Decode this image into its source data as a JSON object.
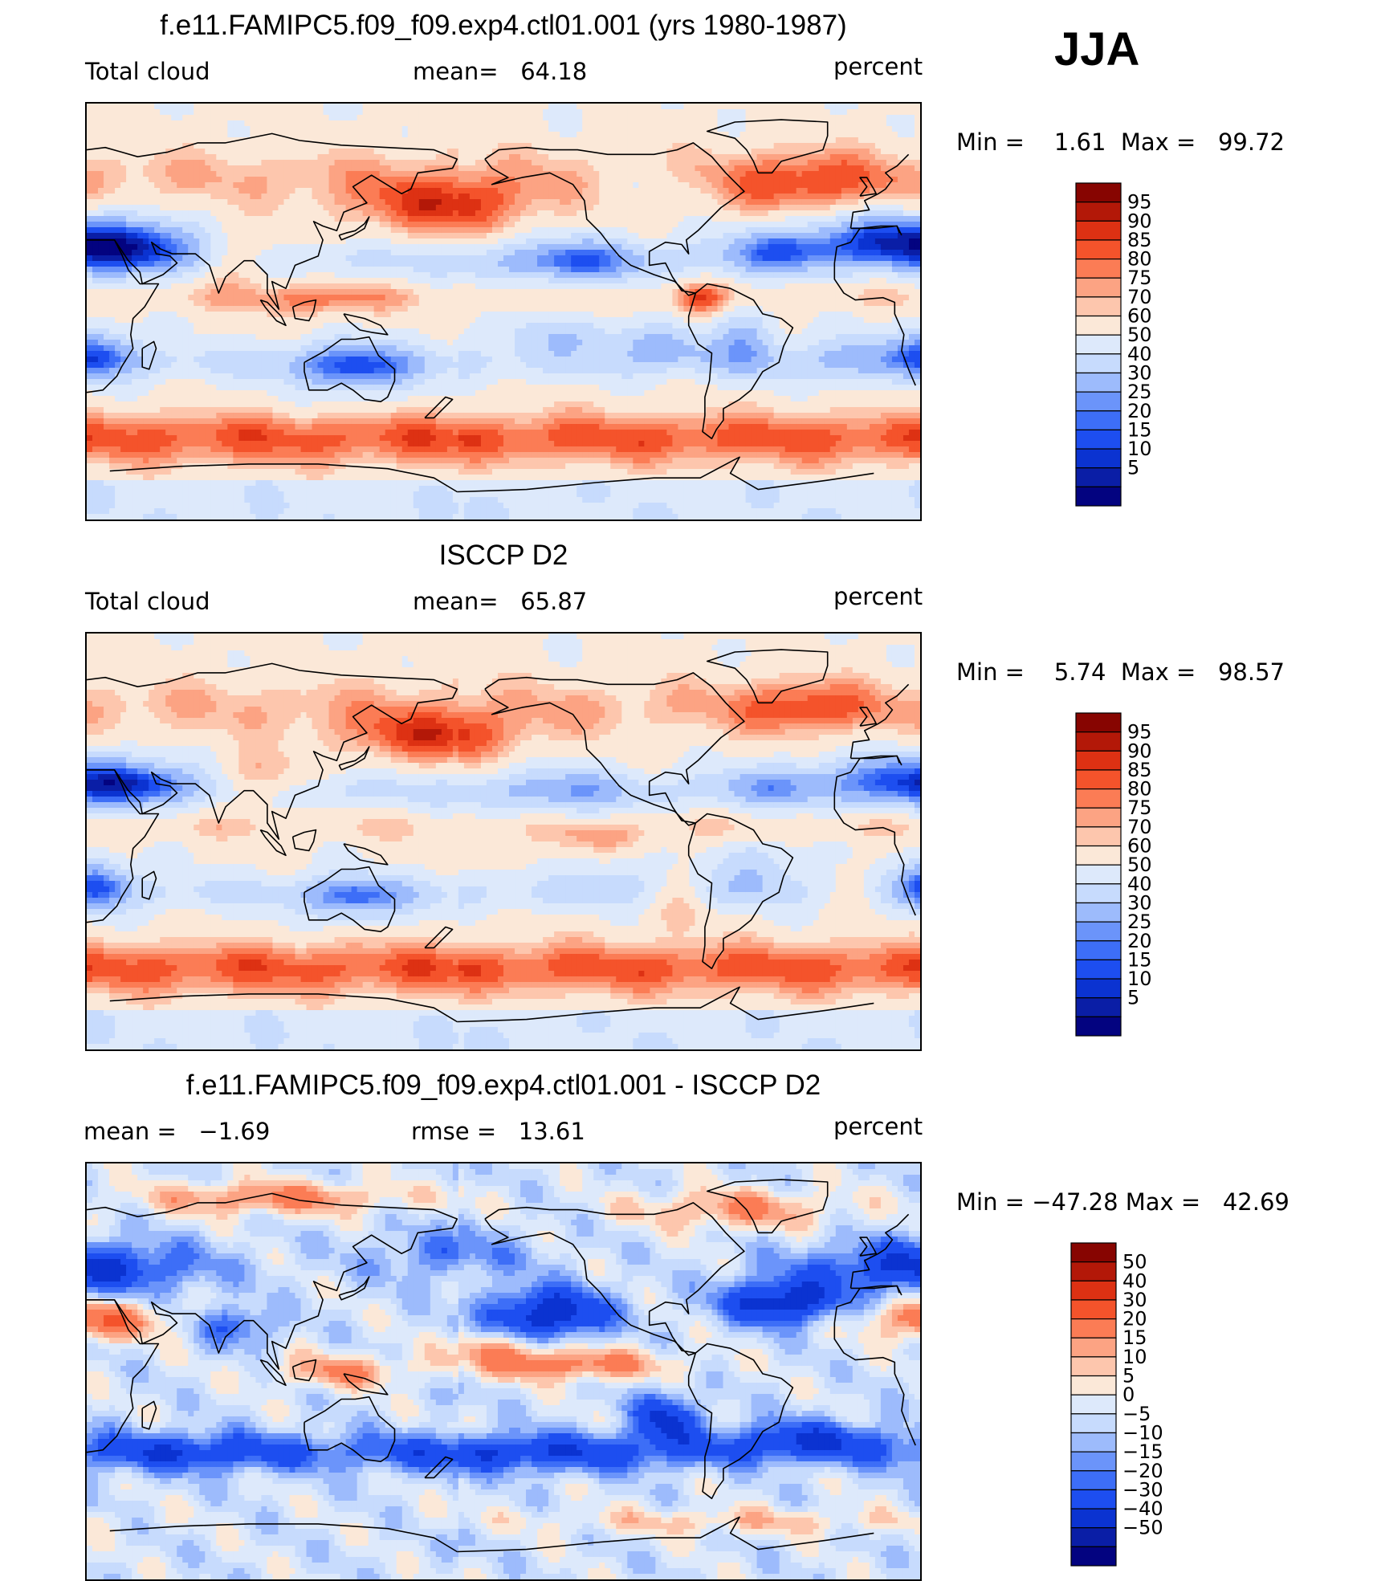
{
  "season": "JJA",
  "colors": {
    "abs": [
      "#030380",
      "#0a1ea6",
      "#0b33d1",
      "#1d4ef0",
      "#3d6ef7",
      "#6b94fa",
      "#9dbbfc",
      "#c7dbfd",
      "#dde9fb",
      "#fbe8d8",
      "#fdc6ad",
      "#fca383",
      "#fb7c55",
      "#f4532b",
      "#dd3113",
      "#b31808",
      "#870501"
    ],
    "diff": [
      "#030380",
      "#0a1ea6",
      "#0b33d1",
      "#1d4ef0",
      "#3d6ef7",
      "#6b94fa",
      "#9dbbfc",
      "#c7dbfd",
      "#dde9fb",
      "#fbe8d8",
      "#fdc6ad",
      "#fca383",
      "#fb7c55",
      "#f4532b",
      "#dd3113",
      "#b31808",
      "#870501"
    ]
  },
  "panels": [
    {
      "title": "f.e11.FAMIPC5.f09_f09.exp4.ctl01.001 (yrs 1980-1987)",
      "left_label": "Total cloud",
      "mid_label": "mean=   64.18",
      "right_label": "percent",
      "minmax": "Min =    1.61  Max =   99.72",
      "levels": [
        "95",
        "90",
        "85",
        "80",
        "75",
        "70",
        "60",
        "50",
        "40",
        "30",
        "25",
        "20",
        "15",
        "10",
        "5"
      ]
    },
    {
      "title": "ISCCP D2",
      "left_label": "Total cloud",
      "mid_label": "mean=   65.87",
      "right_label": "percent",
      "minmax": "Min =    5.74  Max =   98.57",
      "levels": [
        "95",
        "90",
        "85",
        "80",
        "75",
        "70",
        "60",
        "50",
        "40",
        "30",
        "25",
        "20",
        "15",
        "10",
        "5"
      ]
    },
    {
      "title": "f.e11.FAMIPC5.f09_f09.exp4.ctl01.001 - ISCCP D2",
      "left_label": "mean =   −1.69",
      "mid_label": "rmse =   13.61",
      "right_label": "percent",
      "minmax": "Min = −47.28 Max =   42.69",
      "levels": [
        "50",
        "40",
        "30",
        "20",
        "15",
        "10",
        "5",
        "0",
        "−5",
        "−10",
        "−15",
        "−20",
        "−30",
        "−40",
        "−50"
      ]
    }
  ]
}
